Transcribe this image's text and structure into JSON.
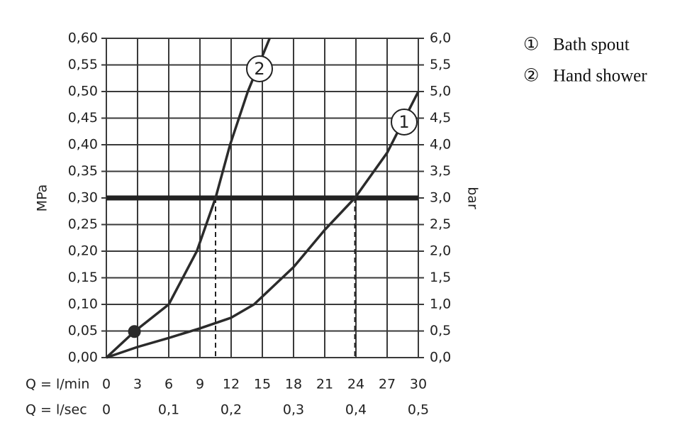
{
  "chart_data": {
    "type": "line",
    "y_label": "MPa",
    "y2_label": "bar",
    "x_label": "Q = l/min",
    "x2_label": "Q = l/sec",
    "xlim": [
      0,
      30
    ],
    "xticks": [
      0,
      3,
      6,
      9,
      12,
      15,
      18,
      21,
      24,
      27,
      30
    ],
    "x2lim": [
      0,
      0.5
    ],
    "x2ticks": [
      0,
      {
        "value": 0.1,
        "label": "0,1"
      },
      {
        "value": 0.2,
        "label": "0,2"
      },
      {
        "value": 0.3,
        "label": "0,3"
      },
      {
        "value": 0.4,
        "label": "0,4"
      },
      {
        "value": 0.5,
        "label": "0,5"
      }
    ],
    "ylim": [
      0,
      0.6
    ],
    "yticks": [
      {
        "value": 0,
        "label": "0,00"
      },
      {
        "value": 0.05,
        "label": "0,05"
      },
      {
        "value": 0.1,
        "label": "0,10"
      },
      {
        "value": 0.15,
        "label": "0,15"
      },
      {
        "value": 0.2,
        "label": "0,20"
      },
      {
        "value": 0.25,
        "label": "0,25"
      },
      {
        "value": 0.3,
        "label": "0,30"
      },
      {
        "value": 0.35,
        "label": "0,35"
      },
      {
        "value": 0.4,
        "label": "0,40"
      },
      {
        "value": 0.45,
        "label": "0,45"
      },
      {
        "value": 0.5,
        "label": "0,50"
      },
      {
        "value": 0.55,
        "label": "0,55"
      },
      {
        "value": 0.6,
        "label": "0,60"
      }
    ],
    "y2lim": [
      0,
      6
    ],
    "y2ticks": [
      {
        "value": 0,
        "label": "0,0"
      },
      {
        "value": 0.5,
        "label": "0,5"
      },
      {
        "value": 1,
        "label": "1,0"
      },
      {
        "value": 1.5,
        "label": "1,5"
      },
      {
        "value": 2,
        "label": "2,0"
      },
      {
        "value": 2.5,
        "label": "2,5"
      },
      {
        "value": 3,
        "label": "3,0"
      },
      {
        "value": 3.5,
        "label": "3,5"
      },
      {
        "value": 4,
        "label": "4,0"
      },
      {
        "value": 4.5,
        "label": "4,5"
      },
      {
        "value": 5,
        "label": "5,0"
      },
      {
        "value": 5.5,
        "label": "5,5"
      },
      {
        "value": 6,
        "label": "6,0"
      }
    ],
    "grid": true,
    "reference_line": 0.3,
    "drop_lines": [
      10.5,
      23.9
    ],
    "series": [
      {
        "name": "Bath spout",
        "symbol": "①",
        "curve_label": "1",
        "color": "#2b2b2b",
        "x": [
          0,
          3,
          6,
          9,
          12,
          14.2,
          18,
          21,
          23.9,
          27,
          30
        ],
        "values": [
          0,
          0.02,
          0.037,
          0.055,
          0.075,
          0.1,
          0.17,
          0.24,
          0.3,
          0.385,
          0.5
        ]
      },
      {
        "name": "Hand shower",
        "symbol": "②",
        "curve_label": "2",
        "color": "#2b2b2b",
        "x": [
          0,
          2.7,
          6,
          8.7,
          10.5,
          11.9,
          13.6,
          15.7
        ],
        "values": [
          0,
          0.049,
          0.1,
          0.2,
          0.3,
          0.4,
          0.5,
          0.6
        ]
      }
    ],
    "marker": {
      "x": 2.7,
      "y": 0.049
    }
  }
}
